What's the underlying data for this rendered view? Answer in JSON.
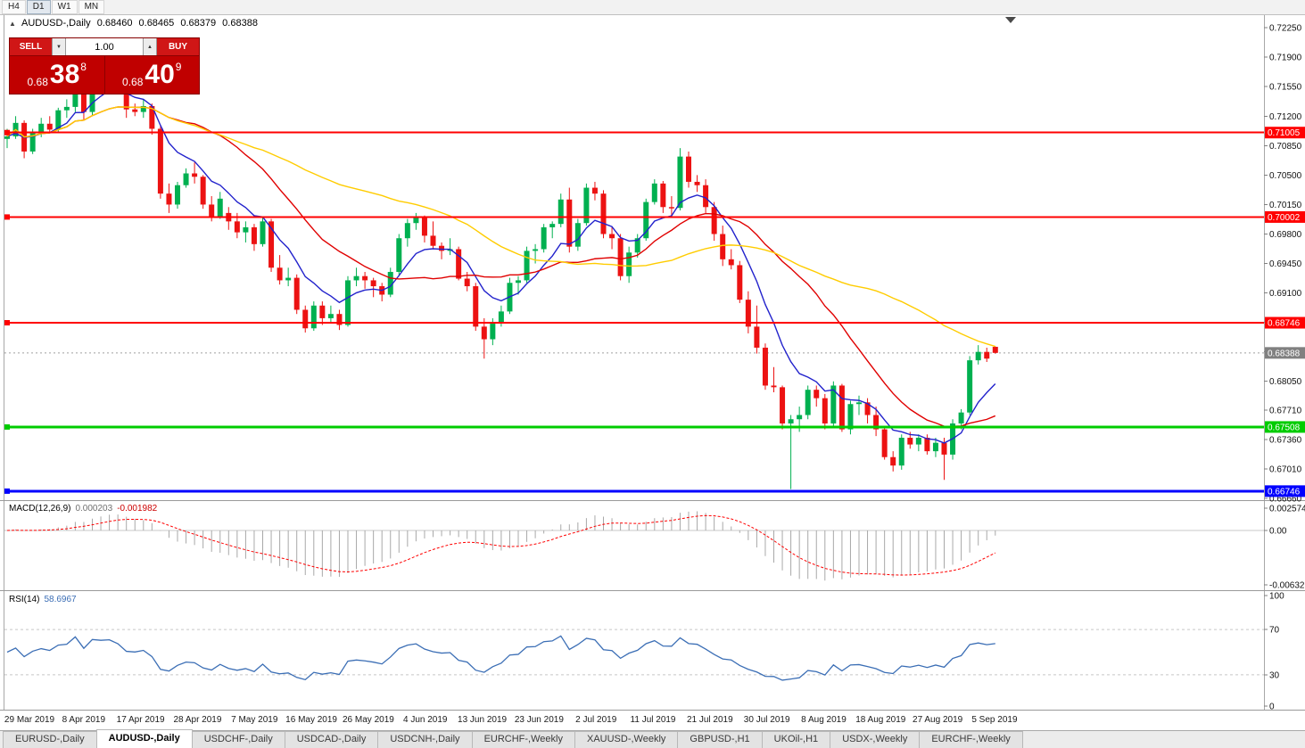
{
  "toolbar": {
    "timeframes": [
      {
        "label": "H4",
        "active": false
      },
      {
        "label": "D1",
        "active": true
      },
      {
        "label": "W1",
        "active": false
      },
      {
        "label": "MN",
        "active": false
      }
    ]
  },
  "chart_ui": {
    "title": "AUDUSD-,Daily",
    "ohlc": {
      "o": "0.68460",
      "h": "0.68465",
      "l": "0.68379",
      "c": "0.68388"
    },
    "one_click": {
      "sell_label": "SELL",
      "buy_label": "BUY",
      "volume": "1.00",
      "sell_price": {
        "prefix": "0.68",
        "big": "38",
        "sup": "8"
      },
      "buy_price": {
        "prefix": "0.68",
        "big": "40",
        "sup": "9"
      }
    }
  },
  "chart_data": {
    "type": "candlestick",
    "symbol": "AUDUSD-",
    "timeframe": "Daily",
    "bull_color": "#00b050",
    "bear_color": "#ec1212",
    "candles": [
      [
        0.7093,
        0.7105,
        0.7082,
        0.7096
      ],
      [
        0.7096,
        0.712,
        0.7093,
        0.7112
      ],
      [
        0.7112,
        0.7115,
        0.707,
        0.7078
      ],
      [
        0.7078,
        0.7105,
        0.7075,
        0.71
      ],
      [
        0.71,
        0.7118,
        0.7095,
        0.7111
      ],
      [
        0.7111,
        0.712,
        0.71,
        0.7104
      ],
      [
        0.7104,
        0.713,
        0.71,
        0.7127
      ],
      [
        0.7127,
        0.714,
        0.7118,
        0.7131
      ],
      [
        0.7131,
        0.7172,
        0.7125,
        0.7168
      ],
      [
        0.7168,
        0.7175,
        0.7115,
        0.7125
      ],
      [
        0.7125,
        0.7178,
        0.712,
        0.7175
      ],
      [
        0.7175,
        0.718,
        0.716,
        0.7172
      ],
      [
        0.7172,
        0.7182,
        0.7165,
        0.7175
      ],
      [
        0.7175,
        0.718,
        0.715,
        0.716
      ],
      [
        0.716,
        0.7163,
        0.7118,
        0.7128
      ],
      [
        0.7128,
        0.7135,
        0.712,
        0.7125
      ],
      [
        0.7125,
        0.714,
        0.7118,
        0.7132
      ],
      [
        0.7132,
        0.7135,
        0.7098,
        0.7105
      ],
      [
        0.7105,
        0.7108,
        0.7022,
        0.7028
      ],
      [
        0.7028,
        0.704,
        0.7005,
        0.7015
      ],
      [
        0.7015,
        0.7042,
        0.701,
        0.7038
      ],
      [
        0.7038,
        0.7058,
        0.7035,
        0.7052
      ],
      [
        0.7052,
        0.7065,
        0.704,
        0.7048
      ],
      [
        0.7048,
        0.705,
        0.701,
        0.7015
      ],
      [
        0.7015,
        0.7025,
        0.6995,
        0.7
      ],
      [
        0.7,
        0.703,
        0.6998,
        0.7022
      ],
      [
        0.7005,
        0.7012,
        0.6985,
        0.6995
      ],
      [
        0.6995,
        0.7005,
        0.6975,
        0.6982
      ],
      [
        0.6982,
        0.6995,
        0.697,
        0.6988
      ],
      [
        0.6988,
        0.6992,
        0.696,
        0.6968
      ],
      [
        0.6968,
        0.7,
        0.6965,
        0.6995
      ],
      [
        0.6995,
        0.6998,
        0.6935,
        0.694
      ],
      [
        0.694,
        0.6955,
        0.692,
        0.6925
      ],
      [
        0.6925,
        0.694,
        0.6918,
        0.6928
      ],
      [
        0.6928,
        0.6932,
        0.6885,
        0.689
      ],
      [
        0.689,
        0.6895,
        0.6863,
        0.6868
      ],
      [
        0.6868,
        0.69,
        0.6865,
        0.6895
      ],
      [
        0.6895,
        0.69,
        0.6872,
        0.688
      ],
      [
        0.688,
        0.6895,
        0.6875,
        0.6885
      ],
      [
        0.6885,
        0.689,
        0.6866,
        0.6872
      ],
      [
        0.6872,
        0.693,
        0.687,
        0.6925
      ],
      [
        0.6925,
        0.694,
        0.6918,
        0.693
      ],
      [
        0.693,
        0.6935,
        0.6915,
        0.6925
      ],
      [
        0.6925,
        0.6928,
        0.6905,
        0.6918
      ],
      [
        0.6918,
        0.6922,
        0.69,
        0.6908
      ],
      [
        0.6908,
        0.694,
        0.6905,
        0.6935
      ],
      [
        0.6935,
        0.698,
        0.693,
        0.6975
      ],
      [
        0.6975,
        0.6998,
        0.6965,
        0.6993
      ],
      [
        0.6993,
        0.7005,
        0.6985,
        0.7
      ],
      [
        0.7,
        0.7002,
        0.697,
        0.6978
      ],
      [
        0.6978,
        0.6995,
        0.6962,
        0.6966
      ],
      [
        0.6966,
        0.697,
        0.695,
        0.696
      ],
      [
        0.696,
        0.6975,
        0.6955,
        0.6962
      ],
      [
        0.6962,
        0.6965,
        0.6925,
        0.6927
      ],
      [
        0.6927,
        0.6935,
        0.6912,
        0.6918
      ],
      [
        0.6918,
        0.6922,
        0.6865,
        0.687
      ],
      [
        0.687,
        0.688,
        0.6832,
        0.6855
      ],
      [
        0.6855,
        0.688,
        0.6848,
        0.6875
      ],
      [
        0.6875,
        0.6895,
        0.687,
        0.6888
      ],
      [
        0.6888,
        0.6928,
        0.6885,
        0.6922
      ],
      [
        0.6922,
        0.693,
        0.6908,
        0.6925
      ],
      [
        0.6925,
        0.6965,
        0.6922,
        0.696
      ],
      [
        0.696,
        0.6968,
        0.6945,
        0.6962
      ],
      [
        0.6962,
        0.6992,
        0.6958,
        0.6988
      ],
      [
        0.6988,
        0.6995,
        0.6975,
        0.6992
      ],
      [
        0.6992,
        0.7028,
        0.6988,
        0.7021
      ],
      [
        0.7021,
        0.7035,
        0.6958,
        0.6965
      ],
      [
        0.6965,
        0.6998,
        0.696,
        0.6993
      ],
      [
        0.6993,
        0.704,
        0.699,
        0.7035
      ],
      [
        0.7035,
        0.7042,
        0.702,
        0.7028
      ],
      [
        0.7028,
        0.7032,
        0.6975,
        0.698
      ],
      [
        0.698,
        0.6988,
        0.6962,
        0.6975
      ],
      [
        0.6975,
        0.698,
        0.6925,
        0.693
      ],
      [
        0.693,
        0.6965,
        0.6922,
        0.6958
      ],
      [
        0.6958,
        0.698,
        0.6952,
        0.6975
      ],
      [
        0.6975,
        0.7022,
        0.6972,
        0.7018
      ],
      [
        0.7018,
        0.7045,
        0.7015,
        0.704
      ],
      [
        0.704,
        0.7043,
        0.7005,
        0.7012
      ],
      [
        0.7012,
        0.7025,
        0.7,
        0.7011
      ],
      [
        0.7011,
        0.7082,
        0.7008,
        0.7072
      ],
      [
        0.7072,
        0.7078,
        0.7035,
        0.7042
      ],
      [
        0.7042,
        0.705,
        0.703,
        0.7038
      ],
      [
        0.7038,
        0.7045,
        0.7005,
        0.7012
      ],
      [
        0.7012,
        0.7018,
        0.6972,
        0.698
      ],
      [
        0.698,
        0.699,
        0.6942,
        0.695
      ],
      [
        0.695,
        0.6962,
        0.6938,
        0.6943
      ],
      [
        0.6943,
        0.6948,
        0.6898,
        0.6902
      ],
      [
        0.6902,
        0.6912,
        0.6862,
        0.687
      ],
      [
        0.687,
        0.6895,
        0.6838,
        0.6845
      ],
      [
        0.6845,
        0.685,
        0.6795,
        0.68
      ],
      [
        0.68,
        0.6822,
        0.6792,
        0.6798
      ],
      [
        0.6798,
        0.68,
        0.6748,
        0.6755
      ],
      [
        0.6755,
        0.6765,
        0.6677,
        0.676
      ],
      [
        0.676,
        0.6775,
        0.6745,
        0.6765
      ],
      [
        0.6765,
        0.68,
        0.676,
        0.6795
      ],
      [
        0.6795,
        0.68,
        0.6775,
        0.6785
      ],
      [
        0.6785,
        0.679,
        0.6748,
        0.6755
      ],
      [
        0.6755,
        0.6805,
        0.675,
        0.68
      ],
      [
        0.68,
        0.6802,
        0.6745,
        0.6748
      ],
      [
        0.6748,
        0.6782,
        0.6742,
        0.6778
      ],
      [
        0.6778,
        0.6788,
        0.6765,
        0.678
      ],
      [
        0.678,
        0.6785,
        0.6755,
        0.6765
      ],
      [
        0.6765,
        0.6775,
        0.674,
        0.6748
      ],
      [
        0.6748,
        0.6752,
        0.6712,
        0.6715
      ],
      [
        0.6715,
        0.6722,
        0.6698,
        0.6705
      ],
      [
        0.6705,
        0.6742,
        0.67,
        0.6738
      ],
      [
        0.6738,
        0.6745,
        0.6725,
        0.673
      ],
      [
        0.673,
        0.6742,
        0.6722,
        0.6738
      ],
      [
        0.6738,
        0.6742,
        0.6718,
        0.6722
      ],
      [
        0.6722,
        0.6738,
        0.6715,
        0.6732
      ],
      [
        0.6732,
        0.6738,
        0.6688,
        0.6718
      ],
      [
        0.6718,
        0.676,
        0.6712,
        0.6755
      ],
      [
        0.6755,
        0.6772,
        0.6748,
        0.6768
      ],
      [
        0.6768,
        0.6835,
        0.6765,
        0.683
      ],
      [
        0.683,
        0.6848,
        0.6825,
        0.684
      ],
      [
        0.684,
        0.6845,
        0.6828,
        0.6832
      ],
      [
        0.6846,
        0.68465,
        0.68379,
        0.68388
      ]
    ],
    "ma_overlays": [
      {
        "name": "ma-fast",
        "method": "ema",
        "period": 8,
        "color": "#2222cc"
      },
      {
        "name": "ma-mid",
        "method": "sma",
        "period": 20,
        "color": "#e00000"
      },
      {
        "name": "ma-slow",
        "method": "sma",
        "period": 45,
        "color": "#ffcc00"
      }
    ],
    "hlines": [
      {
        "label": "0.71005",
        "price": 0.71005,
        "color": "#ff0000",
        "width": 2
      },
      {
        "label": "0.70002",
        "price": 0.70002,
        "color": "#ff0000",
        "width": 2
      },
      {
        "label": "0.68746",
        "price": 0.68746,
        "color": "#ff0000",
        "width": 2
      },
      {
        "label": "0.67508",
        "price": 0.67508,
        "color": "#00cc00",
        "width": 3
      },
      {
        "label": "0.66746",
        "price": 0.66746,
        "color": "#0000ff",
        "width": 3
      }
    ],
    "bid": {
      "label": "0.68388",
      "price": 0.68388,
      "color": "#808080"
    },
    "price_ticks": [
      "0.72250",
      "0.71900",
      "0.71550",
      "0.71200",
      "0.70850",
      "0.70500",
      "0.70150",
      "0.69800",
      "0.69450",
      "0.69100",
      "0.68750",
      "0.68400",
      "0.68050",
      "0.67710",
      "0.67360",
      "0.67010",
      "0.66660"
    ],
    "macd": {
      "label": "MACD(12,26,9)",
      "value_main": "0.000203",
      "value_signal": "-0.001982",
      "fast": 12,
      "slow": 26,
      "smoothing": 9,
      "axis_ticks": [
        "0.002574",
        "0.00",
        "-0.006326"
      ],
      "hist_color": "#a8a8a8",
      "signal_color": "#ff0000"
    },
    "rsi": {
      "label": "RSI(14)",
      "value": "58.6967",
      "period": 14,
      "axis_ticks": [
        "100",
        "70",
        "30",
        "0"
      ],
      "levels": [
        70,
        30
      ],
      "color": "#3b6eb5"
    },
    "date_labels": [
      "29 Mar 2019",
      "8 Apr 2019",
      "17 Apr 2019",
      "28 Apr 2019",
      "7 May 2019",
      "16 May 2019",
      "26 May 2019",
      "4 Jun 2019",
      "13 Jun 2019",
      "23 Jun 2019",
      "2 Jul 2019",
      "11 Jul 2019",
      "21 Jul 2019",
      "30 Jul 2019",
      "8 Aug 2019",
      "18 Aug 2019",
      "27 Aug 2019",
      "5 Sep 2019"
    ]
  },
  "tabs": [
    {
      "label": "EURUSD-,Daily",
      "active": false
    },
    {
      "label": "AUDUSD-,Daily",
      "active": true
    },
    {
      "label": "USDCHF-,Daily",
      "active": false
    },
    {
      "label": "USDCAD-,Daily",
      "active": false
    },
    {
      "label": "USDCNH-,Daily",
      "active": false
    },
    {
      "label": "EURCHF-,Weekly",
      "active": false
    },
    {
      "label": "XAUUSD-,Weekly",
      "active": false
    },
    {
      "label": "GBPUSD-,H1",
      "active": false
    },
    {
      "label": "UKOil-,H1",
      "active": false
    },
    {
      "label": "USDX-,Weekly",
      "active": false
    },
    {
      "label": "EURCHF-,Weekly",
      "active": false
    }
  ],
  "icons": {
    "spinner_down": "▼",
    "spinner_up": "▲",
    "collapse": "▲"
  }
}
